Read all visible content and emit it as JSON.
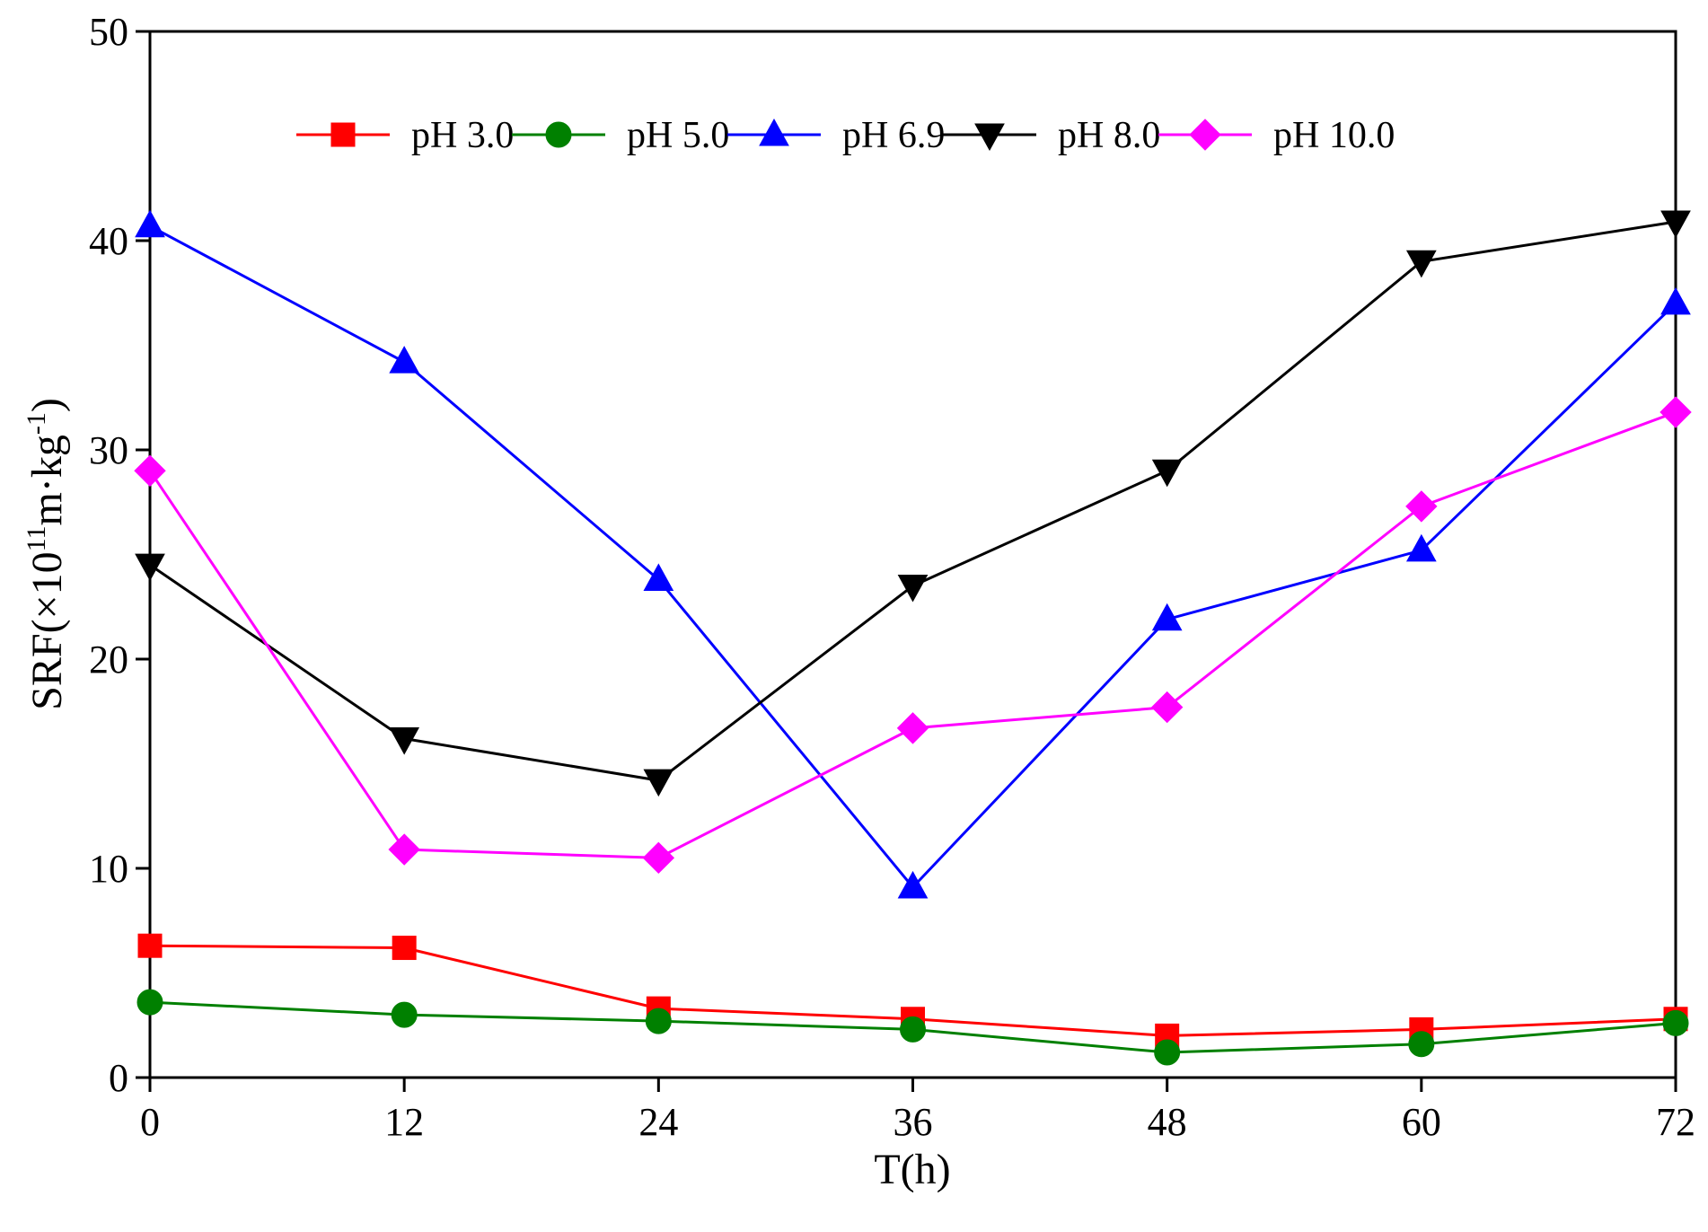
{
  "chart_data": {
    "type": "line",
    "title": "",
    "xlabel": "T(h)",
    "ylabel": {
      "prefix": "SRF(×10",
      "exp1": "11",
      "middle": "m·kg",
      "exp2": "-1",
      "suffix": ")"
    },
    "x": [
      0,
      12,
      24,
      36,
      48,
      60,
      72
    ],
    "x_ticks": [
      0,
      12,
      24,
      36,
      48,
      60,
      72
    ],
    "y_ticks": [
      0,
      10,
      20,
      30,
      40,
      50
    ],
    "xlim": [
      0,
      72
    ],
    "ylim": [
      0,
      50
    ],
    "grid": false,
    "legend_position": "top",
    "series": [
      {
        "name": "pH 3.0",
        "color": "#ff0000",
        "marker": "square",
        "values": [
          6.3,
          6.2,
          3.3,
          2.8,
          2.0,
          2.3,
          2.8
        ]
      },
      {
        "name": "pH 5.0",
        "color": "#008000",
        "marker": "circle",
        "values": [
          3.6,
          3.0,
          2.7,
          2.3,
          1.2,
          1.6,
          2.6
        ]
      },
      {
        "name": "pH 6.9",
        "color": "#0000ff",
        "marker": "triangle-up",
        "values": [
          40.7,
          34.2,
          23.8,
          9.1,
          21.9,
          25.2,
          37.0
        ]
      },
      {
        "name": "pH 8.0",
        "color": "#000000",
        "marker": "triangle-down",
        "values": [
          24.5,
          16.2,
          14.2,
          23.5,
          29.0,
          39.0,
          40.9
        ]
      },
      {
        "name": "pH 10.0",
        "color": "#ff00ff",
        "marker": "diamond",
        "values": [
          29.0,
          10.9,
          10.5,
          16.7,
          17.7,
          27.3,
          31.8
        ]
      }
    ]
  }
}
